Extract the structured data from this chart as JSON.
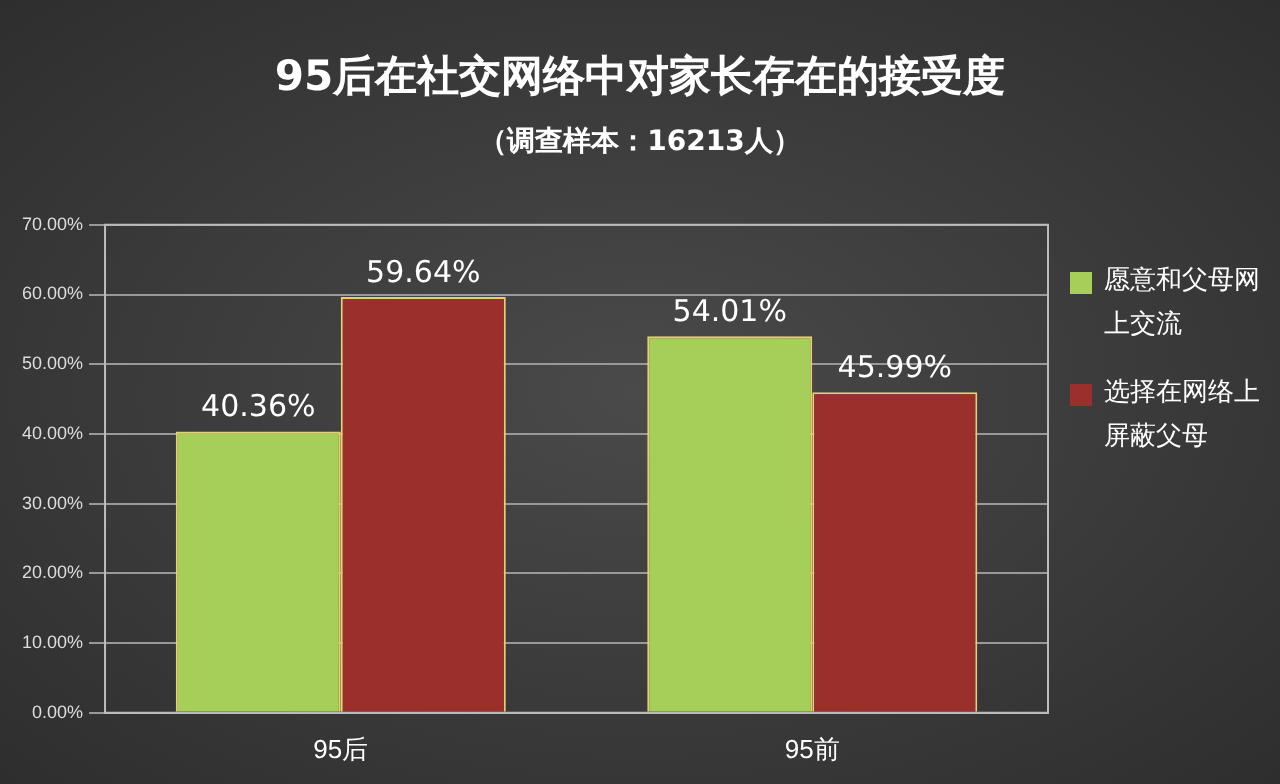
{
  "chart_data": {
    "type": "bar",
    "title": "95后在社交网络中对家长存在的接受度",
    "subtitle": "（调查样本：16213人）",
    "categories": [
      "95后",
      "95前"
    ],
    "series": [
      {
        "name": "愿意和父母网上交流",
        "color": "#a6cf5a",
        "values": [
          40.36,
          54.01
        ],
        "value_labels": [
          "40.36%",
          "54.01%"
        ]
      },
      {
        "name": "选择在网络上屏蔽父母",
        "color": "#9a2f2b",
        "values": [
          59.64,
          45.99
        ],
        "value_labels": [
          "59.64%",
          "45.99%"
        ]
      }
    ],
    "ylim": [
      0,
      70
    ],
    "yticks": [
      {
        "value": 0,
        "label": "0.00%"
      },
      {
        "value": 10,
        "label": "10.00%"
      },
      {
        "value": 20,
        "label": "20.00%"
      },
      {
        "value": 30,
        "label": "30.00%"
      },
      {
        "value": 40,
        "label": "40.00%"
      },
      {
        "value": 50,
        "label": "50.00%"
      },
      {
        "value": 60,
        "label": "60.00%"
      },
      {
        "value": 70,
        "label": "70.00%"
      }
    ],
    "grid": "y",
    "legend": "right"
  }
}
